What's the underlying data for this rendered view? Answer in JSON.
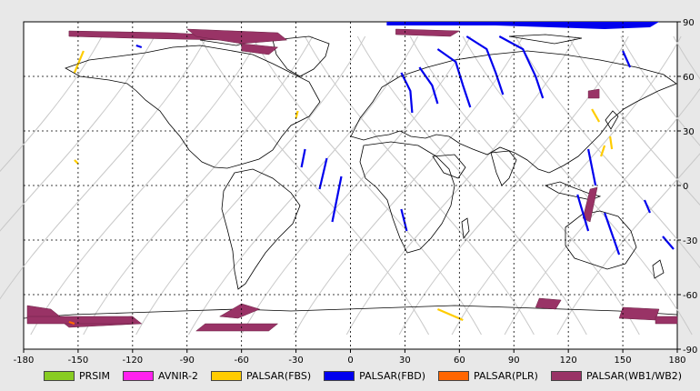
{
  "chart_data": {
    "type": "map",
    "title": "",
    "xlim": [
      -180,
      180
    ],
    "ylim": [
      -90,
      90
    ],
    "x_ticks": [
      -180,
      -150,
      -120,
      -90,
      -60,
      -30,
      0,
      30,
      60,
      90,
      120,
      150,
      180
    ],
    "y_ticks": [
      -90,
      -60,
      -30,
      0,
      30,
      60,
      90
    ],
    "grid": true,
    "legend": [
      {
        "label": "PRSIM",
        "color": "#88cc22"
      },
      {
        "label": "AVNIR-2",
        "color": "#ff22ee"
      },
      {
        "label": "PALSAR(FBS)",
        "color": "#ffcc00"
      },
      {
        "label": "PALSAR(FBD)",
        "color": "#0000ee"
      },
      {
        "label": "PALSAR(PLR)",
        "color": "#ff6600"
      },
      {
        "label": "PALSAR(WB1/WB2)",
        "color": "#993366"
      }
    ]
  }
}
